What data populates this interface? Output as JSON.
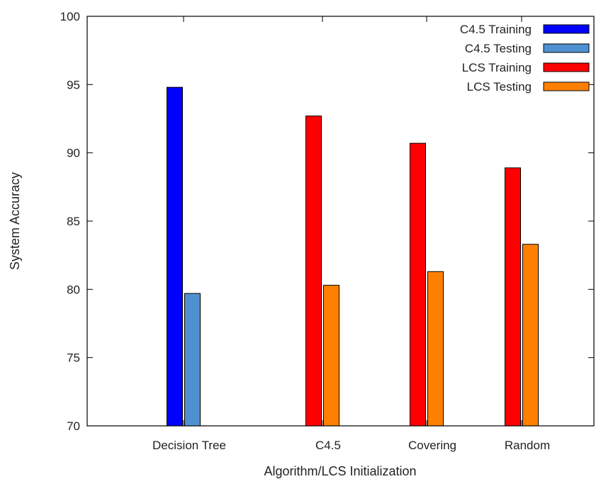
{
  "chart_data": {
    "type": "bar",
    "title": "",
    "xlabel": "Algorithm/LCS Initialization",
    "ylabel": "System Accuracy",
    "ylim": [
      70,
      100
    ],
    "yticks": [
      70,
      75,
      80,
      85,
      90,
      95,
      100
    ],
    "grid": false,
    "legend_position": "top-right",
    "categories": [
      "Decision Tree",
      "C4.5",
      "Covering",
      "Random"
    ],
    "series": [
      {
        "name": "C4.5 Training",
        "color": "#0000ff",
        "values": [
          94.8,
          null,
          null,
          null
        ]
      },
      {
        "name": "C4.5 Testing",
        "color": "#4f91d0",
        "values": [
          79.7,
          null,
          null,
          null
        ]
      },
      {
        "name": "LCS Training",
        "color": "#ff0000",
        "values": [
          null,
          92.7,
          90.7,
          88.9
        ]
      },
      {
        "name": "LCS Testing",
        "color": "#ff8000",
        "values": [
          null,
          80.3,
          81.3,
          83.3
        ]
      }
    ]
  }
}
